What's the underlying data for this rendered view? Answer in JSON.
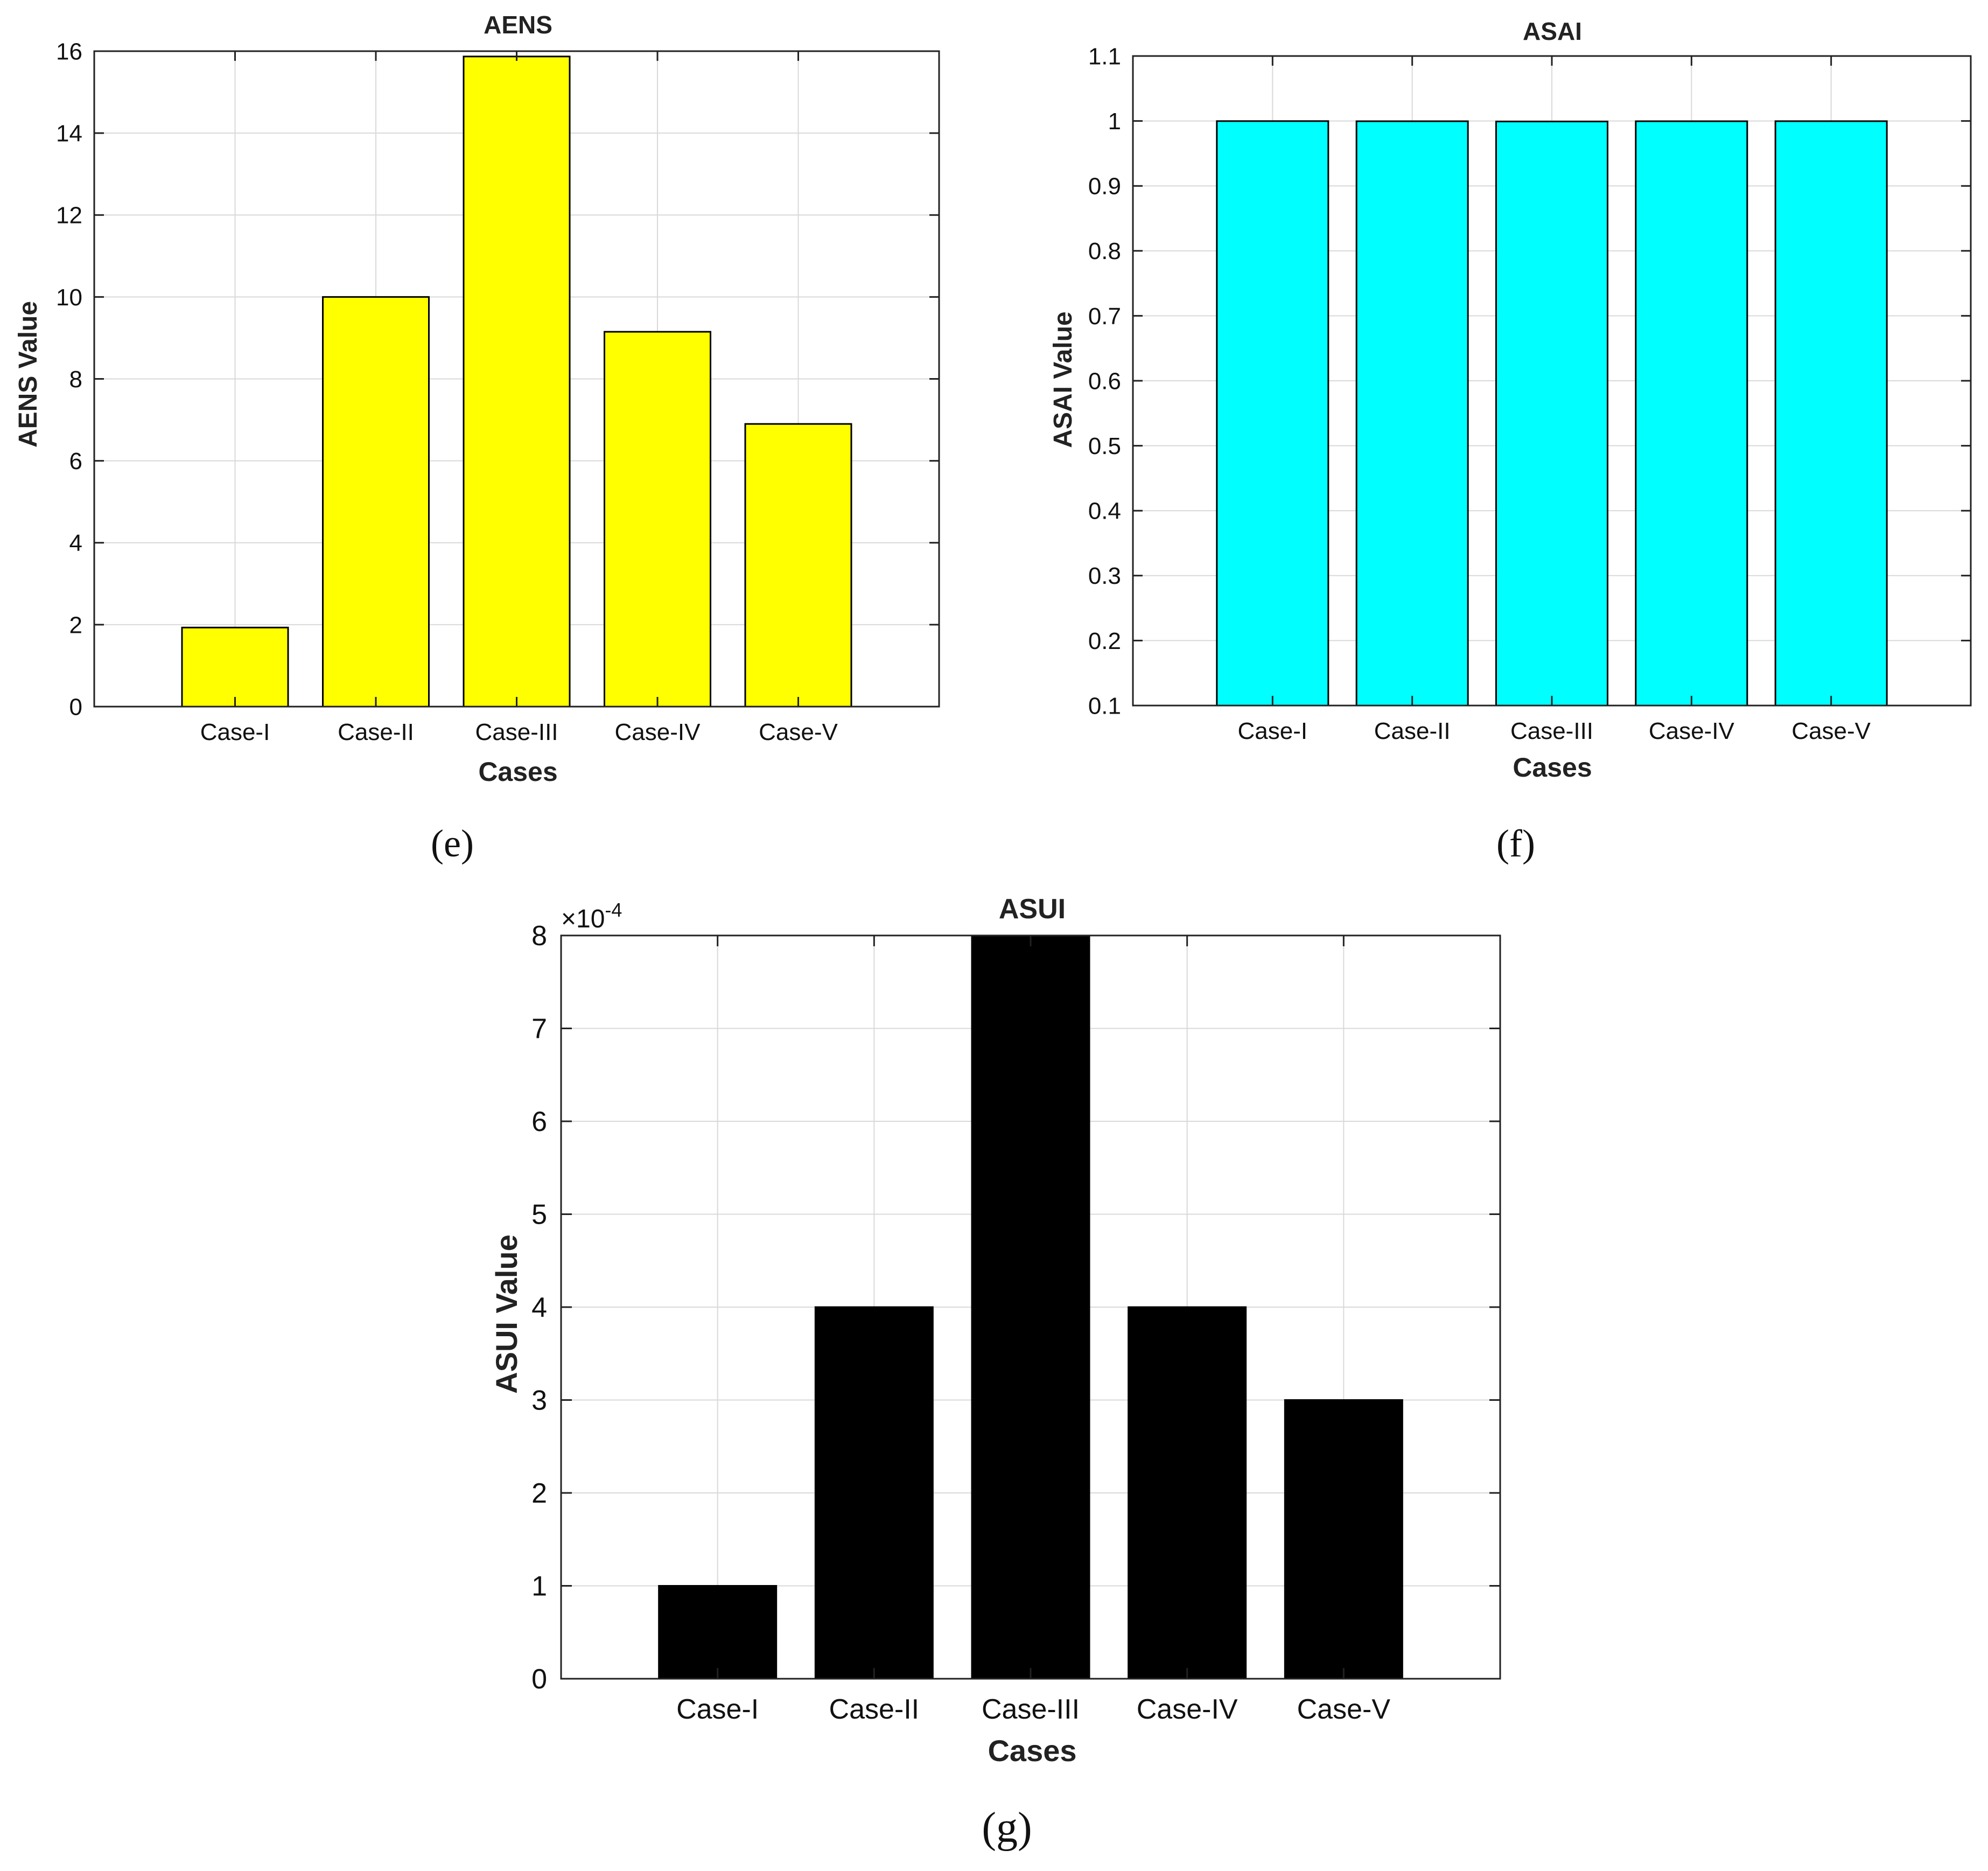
{
  "figure": {
    "panels": [
      {
        "id": "e",
        "caption": "(e)"
      },
      {
        "id": "f",
        "caption": "(f)"
      },
      {
        "id": "g",
        "caption": "(g)"
      }
    ]
  },
  "chart_data": [
    {
      "panel": "e",
      "type": "bar",
      "title": "AENS",
      "xlabel": "Cases",
      "ylabel": "AENS Value",
      "categories": [
        "Case-I",
        "Case-II",
        "Case-III",
        "Case-IV",
        "Case-V"
      ],
      "values": [
        1.93,
        10.0,
        15.87,
        9.15,
        6.9
      ],
      "ylim": [
        0,
        16
      ],
      "yticks": [
        0,
        2,
        4,
        6,
        8,
        10,
        12,
        14,
        16
      ],
      "ytick_labels": [
        "0",
        "2",
        "4",
        "6",
        "8",
        "10",
        "12",
        "14",
        "16"
      ],
      "grid": true,
      "bar_color": "#ffff00",
      "edge_color": "#000000"
    },
    {
      "panel": "f",
      "type": "bar",
      "title": "ASAI",
      "xlabel": "Cases",
      "ylabel": "ASAI Value",
      "categories": [
        "Case-I",
        "Case-II",
        "Case-III",
        "Case-IV",
        "Case-V"
      ],
      "values": [
        0.9998,
        0.9996,
        0.9992,
        0.9996,
        0.9997
      ],
      "ylim": [
        0.1,
        1.1
      ],
      "yticks": [
        0.1,
        0.2,
        0.3,
        0.4,
        0.5,
        0.6,
        0.7,
        0.8,
        0.9,
        1.0,
        1.1
      ],
      "ytick_labels": [
        "0.1",
        "0.2",
        "0.3",
        "0.4",
        "0.5",
        "0.6",
        "0.7",
        "0.8",
        "0.9",
        "1",
        "1.1"
      ],
      "grid": true,
      "bar_color": "#00ffff",
      "edge_color": "#000000"
    },
    {
      "panel": "g",
      "type": "bar",
      "title": "ASUI",
      "xlabel": "Cases",
      "ylabel": "ASUI Value",
      "categories": [
        "Case-I",
        "Case-II",
        "Case-III",
        "Case-IV",
        "Case-V"
      ],
      "values": [
        1,
        4,
        8,
        4,
        3
      ],
      "ylim": [
        0,
        8
      ],
      "yticks": [
        0,
        1,
        2,
        3,
        4,
        5,
        6,
        7,
        8
      ],
      "ytick_labels": [
        "0",
        "1",
        "2",
        "3",
        "4",
        "5",
        "6",
        "7",
        "8"
      ],
      "y_multiplier": {
        "base": "×10",
        "exponent": "-4"
      },
      "grid": true,
      "bar_color": "#000000",
      "edge_color": "#000000"
    }
  ]
}
